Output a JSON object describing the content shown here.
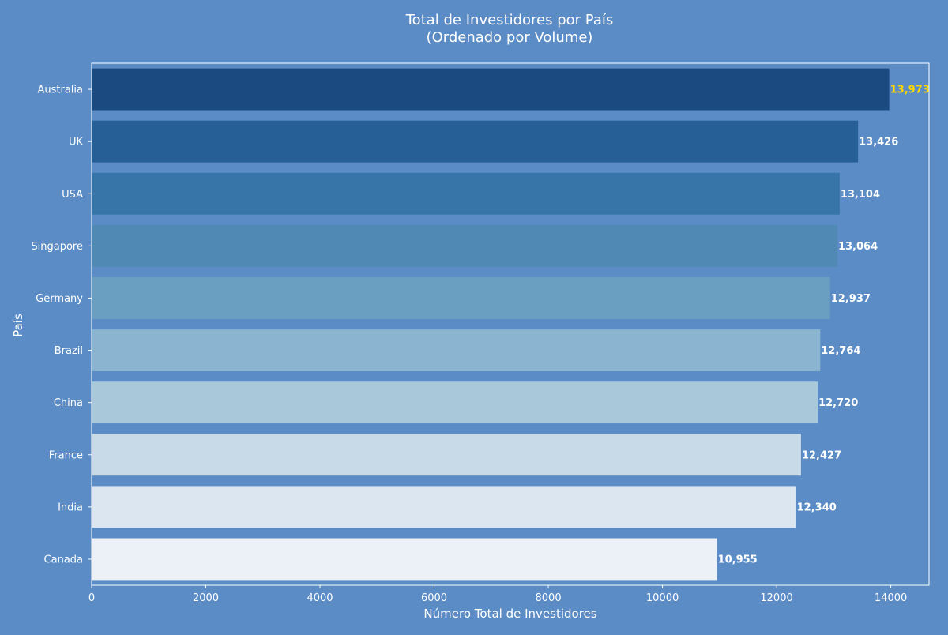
{
  "chart_data": {
    "type": "bar",
    "orientation": "horizontal",
    "title_line1": "Total de Investidores por País",
    "title_line2": "(Ordenado por Volume)",
    "xlabel": "Número Total de Investidores",
    "ylabel": "País",
    "xlim": [
      0,
      14670
    ],
    "x_ticks": [
      0,
      2000,
      4000,
      6000,
      8000,
      10000,
      12000,
      14000
    ],
    "grid": false,
    "legend": "none",
    "categories": [
      "Australia",
      "UK",
      "USA",
      "Singapore",
      "Germany",
      "Brazil",
      "China",
      "France",
      "India",
      "Canada"
    ],
    "values": [
      13973,
      13426,
      13104,
      13064,
      12937,
      12764,
      12720,
      12427,
      12340,
      10955
    ],
    "value_labels": [
      "13,973",
      "13,426",
      "13,104",
      "13,064",
      "12,937",
      "12,764",
      "12,720",
      "12,427",
      "12,340",
      "10,955"
    ],
    "bar_colors": [
      "#1a4a80",
      "#255f96",
      "#3774a8",
      "#508ab4",
      "#6a9fc2",
      "#8ab4cf",
      "#a9c8da",
      "#c8d9e8",
      "#dce6f1",
      "#ecf1f7"
    ],
    "highlight_label_color": "#ffd700",
    "label_color": "#ffffff",
    "background_color": "#5b8cc5"
  }
}
